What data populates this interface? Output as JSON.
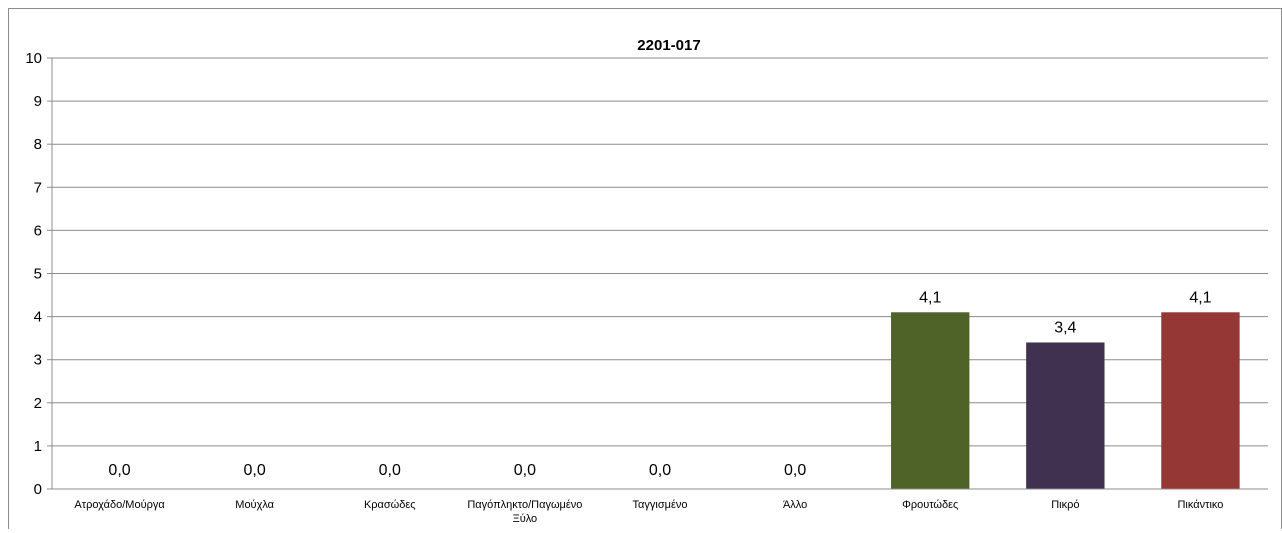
{
  "chart_data": {
    "type": "bar",
    "title": "2201-017",
    "categories": [
      [
        "Ατροχάδο/Μούργα"
      ],
      [
        "Μούχλα"
      ],
      [
        "Κρασώδες"
      ],
      [
        "Παγόπληκτο/Παγωμένο",
        "Ξύλο"
      ],
      [
        "Ταγγισμένο"
      ],
      [
        "Άλλο"
      ],
      [
        "Φρουτώδες"
      ],
      [
        "Πικρό"
      ],
      [
        "Πικάντικο"
      ]
    ],
    "values": [
      0.0,
      0.0,
      0.0,
      0.0,
      0.0,
      0.0,
      4.1,
      3.4,
      4.1
    ],
    "data_labels": [
      "0,0",
      "0,0",
      "0,0",
      "0,0",
      "0,0",
      "0,0",
      "4,1",
      "3,4",
      "4,1"
    ],
    "bar_colors": [
      "#4f81bd",
      "#4f81bd",
      "#4f81bd",
      "#4f81bd",
      "#4f81bd",
      "#4f81bd",
      "#4f6228",
      "#403151",
      "#953735"
    ],
    "ylim": [
      0,
      10
    ],
    "yticks": [
      "0",
      "1",
      "2",
      "3",
      "4",
      "5",
      "6",
      "7",
      "8",
      "9",
      "10"
    ],
    "grid": true,
    "gridline_color": "#8c8c8c",
    "xlabel": "",
    "ylabel": ""
  }
}
